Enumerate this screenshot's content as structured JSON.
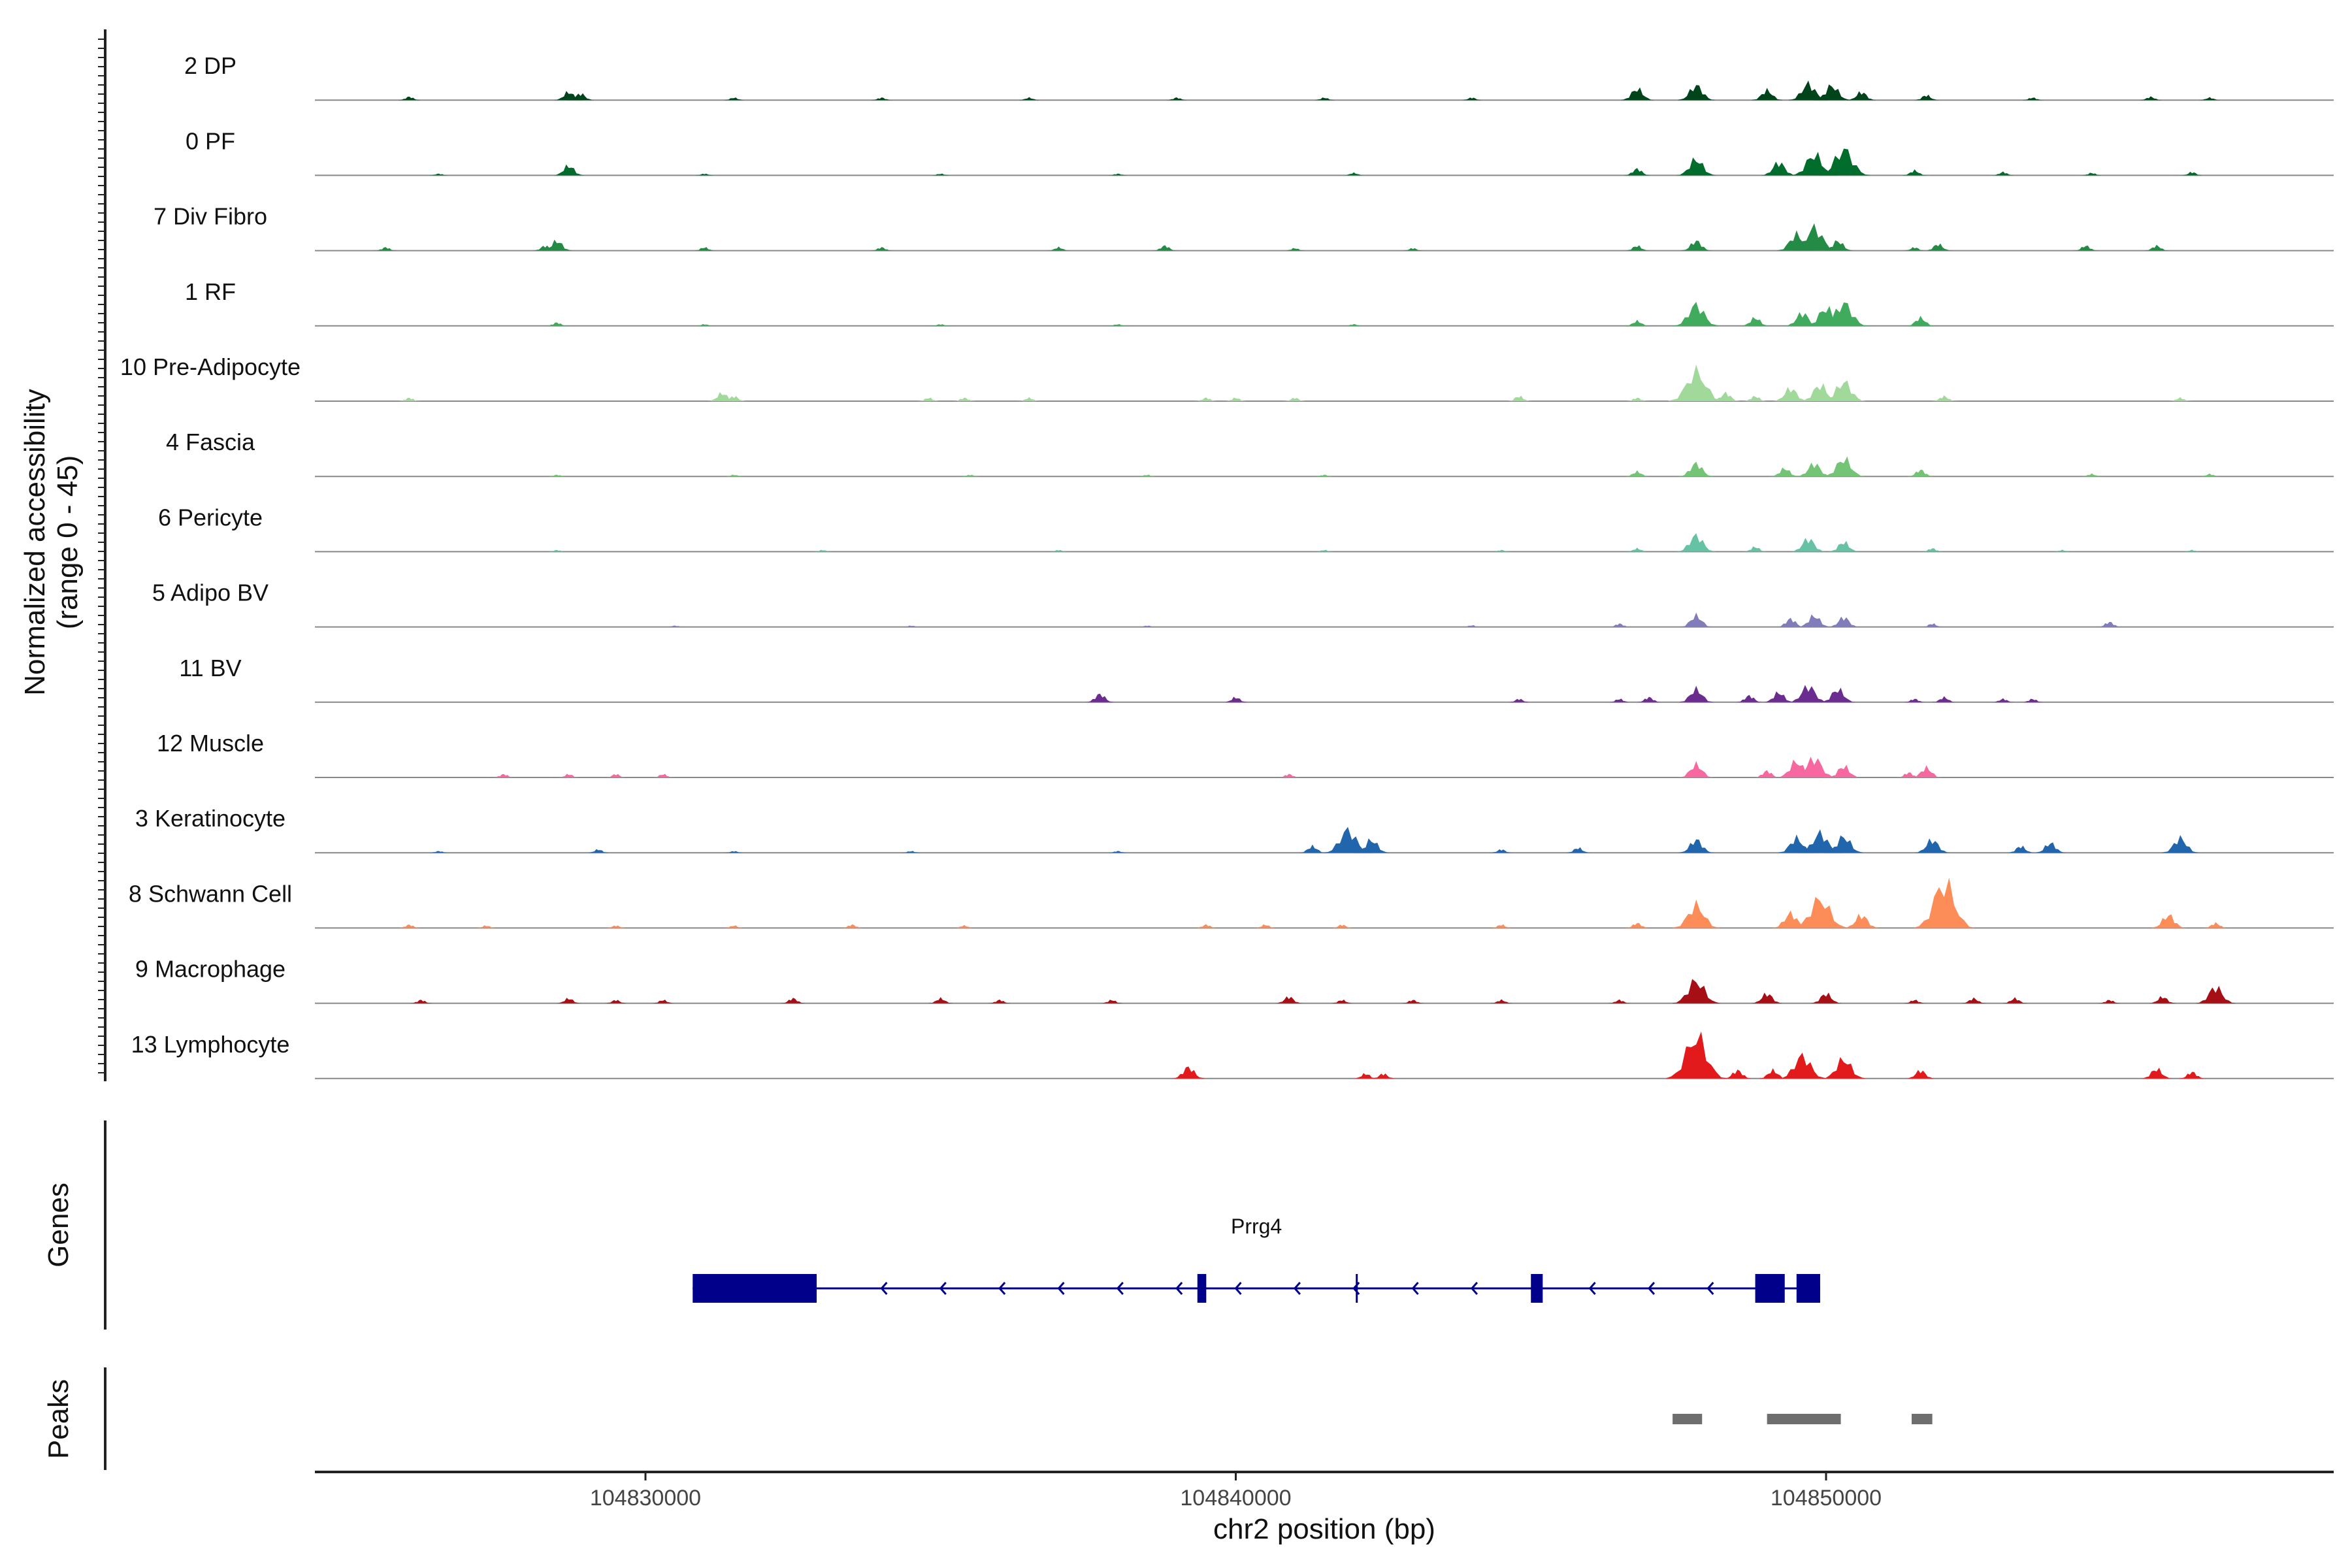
{
  "chart_data": {
    "type": "area",
    "ylabel_line1": "Normalized accessibility",
    "ylabel_line2": "(range 0 - 45)",
    "ylim": [
      0,
      45
    ],
    "xlabel": "chr2 position (bp)",
    "xlim": [
      104824400,
      104858600
    ],
    "xticks": [
      104830000,
      104840000,
      104850000
    ],
    "xtick_labels": [
      "104830000",
      "104840000",
      "104850000"
    ],
    "genes_label": "Genes",
    "peaks_label": "Peaks",
    "series": [
      {
        "name": "2 DP",
        "color": "#00441b",
        "peaks": [
          [
            104826000,
            2
          ],
          [
            104828700,
            5
          ],
          [
            104828900,
            4
          ],
          [
            104831500,
            1.5
          ],
          [
            104834000,
            1.5
          ],
          [
            104836500,
            1.5
          ],
          [
            104839000,
            1.5
          ],
          [
            104841500,
            1.5
          ],
          [
            104844000,
            1.5
          ],
          [
            104846800,
            7
          ],
          [
            104847800,
            9
          ],
          [
            104849000,
            6
          ],
          [
            104849700,
            10
          ],
          [
            104850100,
            9
          ],
          [
            104850600,
            5
          ],
          [
            104851700,
            3
          ],
          [
            104853500,
            1.5
          ],
          [
            104855500,
            2
          ],
          [
            104856500,
            1.5
          ]
        ]
      },
      {
        "name": "0 PF",
        "color": "#006d2c",
        "peaks": [
          [
            104826500,
            1
          ],
          [
            104828700,
            6
          ],
          [
            104831000,
            1
          ],
          [
            104835000,
            1
          ],
          [
            104838000,
            1
          ],
          [
            104842000,
            1.5
          ],
          [
            104846800,
            4
          ],
          [
            104847800,
            10
          ],
          [
            104849200,
            8
          ],
          [
            104849800,
            13
          ],
          [
            104850300,
            16
          ],
          [
            104851500,
            3
          ],
          [
            104853000,
            2
          ],
          [
            104854500,
            1.5
          ],
          [
            104856200,
            2
          ]
        ]
      },
      {
        "name": "7 Div Fibro",
        "color": "#238b45",
        "peaks": [
          [
            104825600,
            2
          ],
          [
            104828500,
            6
          ],
          [
            104828300,
            3
          ],
          [
            104831000,
            2
          ],
          [
            104834000,
            2
          ],
          [
            104837000,
            2
          ],
          [
            104838800,
            3
          ],
          [
            104841000,
            1.5
          ],
          [
            104843000,
            1.5
          ],
          [
            104846800,
            3
          ],
          [
            104847800,
            6
          ],
          [
            104849500,
            10
          ],
          [
            104849800,
            14
          ],
          [
            104850200,
            6
          ],
          [
            104851500,
            2
          ],
          [
            104851900,
            4
          ],
          [
            104854400,
            3
          ],
          [
            104855600,
            3
          ]
        ]
      },
      {
        "name": "1 RF",
        "color": "#41ab5d",
        "peaks": [
          [
            104828500,
            2
          ],
          [
            104831000,
            1
          ],
          [
            104835000,
            1
          ],
          [
            104838000,
            1
          ],
          [
            104842000,
            1
          ],
          [
            104846800,
            3
          ],
          [
            104847800,
            13
          ],
          [
            104848800,
            5
          ],
          [
            104849600,
            8
          ],
          [
            104850000,
            11
          ],
          [
            104850300,
            14
          ],
          [
            104851600,
            5
          ]
        ]
      },
      {
        "name": "10 Pre-Adipocyte",
        "color": "#a1d99b",
        "peaks": [
          [
            104826000,
            2
          ],
          [
            104831300,
            5
          ],
          [
            104831500,
            3
          ],
          [
            104834800,
            2
          ],
          [
            104835400,
            2
          ],
          [
            104836500,
            2
          ],
          [
            104839500,
            2
          ],
          [
            104840000,
            2
          ],
          [
            104841000,
            2
          ],
          [
            104844800,
            3
          ],
          [
            104846800,
            2
          ],
          [
            104847800,
            18
          ],
          [
            104848300,
            5
          ],
          [
            104848800,
            3
          ],
          [
            104849400,
            8
          ],
          [
            104849900,
            10
          ],
          [
            104850300,
            12
          ],
          [
            104852000,
            3
          ],
          [
            104856000,
            2
          ]
        ]
      },
      {
        "name": "4 Fascia",
        "color": "#74c476",
        "peaks": [
          [
            104828500,
            1
          ],
          [
            104831500,
            1
          ],
          [
            104835500,
            1
          ],
          [
            104838500,
            1
          ],
          [
            104841500,
            1
          ],
          [
            104846800,
            3
          ],
          [
            104847800,
            8
          ],
          [
            104849300,
            5
          ],
          [
            104849800,
            8
          ],
          [
            104850300,
            11
          ],
          [
            104851600,
            4
          ],
          [
            104854500,
            1.5
          ],
          [
            104856500,
            1.5
          ]
        ]
      },
      {
        "name": "6 Pericyte",
        "color": "#66c2a4",
        "peaks": [
          [
            104828500,
            1
          ],
          [
            104833000,
            1
          ],
          [
            104837000,
            1
          ],
          [
            104841500,
            1
          ],
          [
            104844500,
            1
          ],
          [
            104846800,
            2
          ],
          [
            104847800,
            10
          ],
          [
            104848800,
            3
          ],
          [
            104849700,
            8
          ],
          [
            104850300,
            6
          ],
          [
            104851800,
            2
          ],
          [
            104854000,
            1
          ],
          [
            104856200,
            1
          ]
        ]
      },
      {
        "name": "5 Adipo BV",
        "color": "#807dba",
        "peaks": [
          [
            104830500,
            0.8
          ],
          [
            104834500,
            0.8
          ],
          [
            104838500,
            0.8
          ],
          [
            104844000,
            1
          ],
          [
            104846500,
            2
          ],
          [
            104847800,
            7
          ],
          [
            104849400,
            5
          ],
          [
            104849800,
            7
          ],
          [
            104850300,
            6
          ],
          [
            104851800,
            2
          ],
          [
            104854800,
            3
          ]
        ]
      },
      {
        "name": "11 BV",
        "color": "#6a2c8e",
        "peaks": [
          [
            104837700,
            5
          ],
          [
            104840000,
            3
          ],
          [
            104844800,
            2
          ],
          [
            104846500,
            2
          ],
          [
            104847000,
            3
          ],
          [
            104847800,
            8
          ],
          [
            104848700,
            4
          ],
          [
            104849200,
            6
          ],
          [
            104849700,
            10
          ],
          [
            104850200,
            8
          ],
          [
            104851500,
            2
          ],
          [
            104852000,
            3
          ],
          [
            104853000,
            2
          ],
          [
            104853500,
            2
          ]
        ]
      },
      {
        "name": "12 Muscle",
        "color": "#f768a1",
        "peaks": [
          [
            104827600,
            2
          ],
          [
            104828700,
            2
          ],
          [
            104829500,
            2
          ],
          [
            104830300,
            2
          ],
          [
            104840900,
            2
          ],
          [
            104847800,
            8
          ],
          [
            104849000,
            4
          ],
          [
            104849500,
            10
          ],
          [
            104849800,
            12
          ],
          [
            104850300,
            7
          ],
          [
            104851400,
            3
          ],
          [
            104851700,
            6
          ]
        ]
      },
      {
        "name": "3 Keratinocyte",
        "color": "#2166ac",
        "peaks": [
          [
            104826500,
            1
          ],
          [
            104829200,
            2
          ],
          [
            104831500,
            1
          ],
          [
            104834500,
            1
          ],
          [
            104838000,
            1
          ],
          [
            104841300,
            4
          ],
          [
            104841900,
            14
          ],
          [
            104842300,
            8
          ],
          [
            104844500,
            2
          ],
          [
            104845800,
            3
          ],
          [
            104847800,
            8
          ],
          [
            104849500,
            9
          ],
          [
            104849900,
            12
          ],
          [
            104850300,
            10
          ],
          [
            104851800,
            8
          ],
          [
            104853300,
            4
          ],
          [
            104853800,
            6
          ],
          [
            104856000,
            9
          ]
        ]
      },
      {
        "name": "8 Schwann Cell",
        "color": "#fc8d59",
        "peaks": [
          [
            104826000,
            2
          ],
          [
            104827300,
            1.5
          ],
          [
            104829500,
            1.5
          ],
          [
            104831500,
            1.5
          ],
          [
            104833500,
            2
          ],
          [
            104835400,
            1.5
          ],
          [
            104839500,
            2
          ],
          [
            104840500,
            2
          ],
          [
            104841800,
            2
          ],
          [
            104844500,
            2
          ],
          [
            104846800,
            3
          ],
          [
            104847800,
            14
          ],
          [
            104849400,
            9
          ],
          [
            104849900,
            18
          ],
          [
            104850600,
            8
          ],
          [
            104852000,
            28
          ],
          [
            104855800,
            8
          ],
          [
            104856600,
            3
          ]
        ]
      },
      {
        "name": "9 Macrophage",
        "color": "#a50f15",
        "peaks": [
          [
            104826200,
            2
          ],
          [
            104828700,
            3
          ],
          [
            104829500,
            2
          ],
          [
            104830300,
            2
          ],
          [
            104832500,
            3
          ],
          [
            104835000,
            3
          ],
          [
            104836000,
            2
          ],
          [
            104837900,
            2
          ],
          [
            104840900,
            4
          ],
          [
            104841800,
            2
          ],
          [
            104843000,
            2
          ],
          [
            104844500,
            2
          ],
          [
            104846500,
            2
          ],
          [
            104847800,
            14
          ],
          [
            104849000,
            6
          ],
          [
            104850000,
            6
          ],
          [
            104851500,
            2
          ],
          [
            104852500,
            3
          ],
          [
            104853200,
            3
          ],
          [
            104854800,
            2
          ],
          [
            104855700,
            4
          ],
          [
            104856600,
            10
          ]
        ]
      },
      {
        "name": "13 Lymphocyte",
        "color": "#e31a1c",
        "peaks": [
          [
            104839200,
            7
          ],
          [
            104842200,
            3
          ],
          [
            104842500,
            3
          ],
          [
            104847800,
            26
          ],
          [
            104848500,
            5
          ],
          [
            104849100,
            5
          ],
          [
            104849600,
            14
          ],
          [
            104850300,
            12
          ],
          [
            104851600,
            5
          ],
          [
            104855600,
            6
          ],
          [
            104856200,
            4
          ]
        ]
      }
    ]
  },
  "gene": {
    "name": "Prrg4",
    "start": 104830800,
    "end": 104849900,
    "strand": "-",
    "color": "#00008b",
    "exons": [
      [
        104830800,
        104832900
      ],
      [
        104839350,
        104839500
      ],
      [
        104845000,
        104845200
      ],
      [
        104848800,
        104849300
      ],
      [
        104849500,
        104849900
      ]
    ],
    "marker": 104842050
  },
  "peaks_track": {
    "color": "#6e6e6e",
    "regions": [
      [
        104847400,
        104847900
      ],
      [
        104849000,
        104850250
      ],
      [
        104851450,
        104851800
      ]
    ]
  }
}
